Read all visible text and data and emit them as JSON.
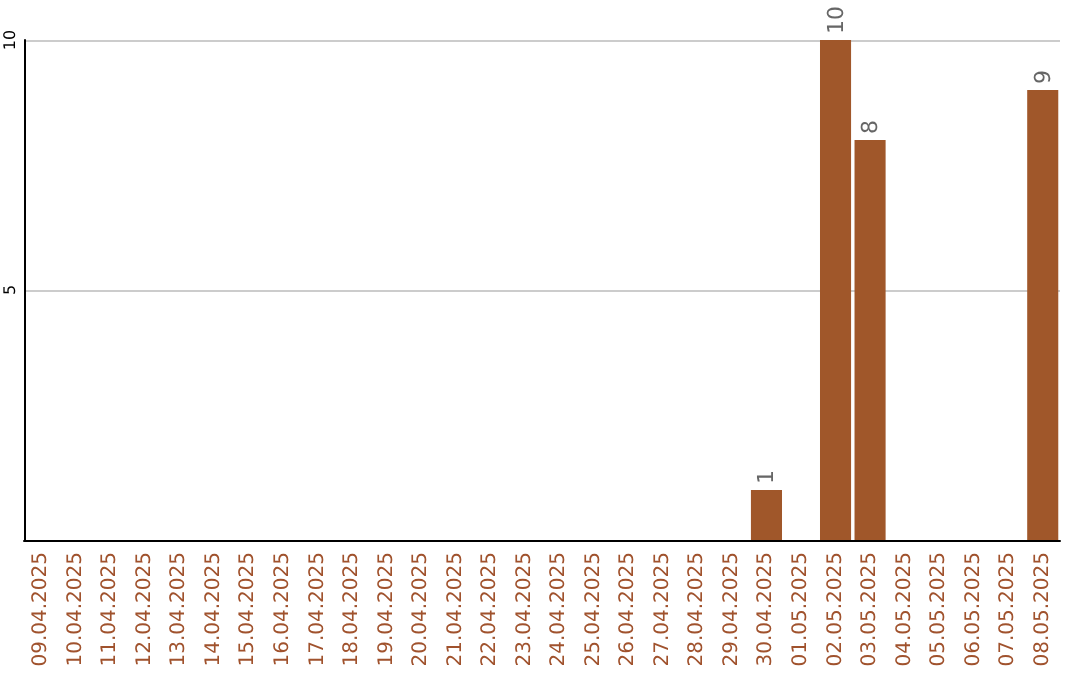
{
  "chart_data": {
    "type": "bar",
    "categories": [
      "09.04.2025",
      "10.04.2025",
      "11.04.2025",
      "12.04.2025",
      "13.04.2025",
      "14.04.2025",
      "15.04.2025",
      "16.04.2025",
      "17.04.2025",
      "18.04.2025",
      "19.04.2025",
      "20.04.2025",
      "21.04.2025",
      "22.04.2025",
      "23.04.2025",
      "24.04.2025",
      "25.04.2025",
      "26.04.2025",
      "27.04.2025",
      "28.04.2025",
      "29.04.2025",
      "30.04.2025",
      "01.05.2025",
      "02.05.2025",
      "03.05.2025",
      "04.05.2025",
      "05.05.2025",
      "06.05.2025",
      "07.05.2025",
      "08.05.2025"
    ],
    "values": [
      0,
      0,
      0,
      0,
      0,
      0,
      0,
      0,
      0,
      0,
      0,
      0,
      0,
      0,
      0,
      0,
      0,
      0,
      0,
      0,
      0,
      1,
      0,
      10,
      8,
      0,
      0,
      0,
      0,
      9
    ],
    "value_labels": [
      null,
      null,
      null,
      null,
      null,
      null,
      null,
      null,
      null,
      null,
      null,
      null,
      null,
      null,
      null,
      null,
      null,
      null,
      null,
      null,
      null,
      "1",
      null,
      "10",
      "8",
      null,
      null,
      null,
      null,
      "9"
    ],
    "color": "#a0572a",
    "ylim": [
      0,
      10
    ],
    "yticks": [
      5,
      10
    ],
    "grid": "y"
  }
}
